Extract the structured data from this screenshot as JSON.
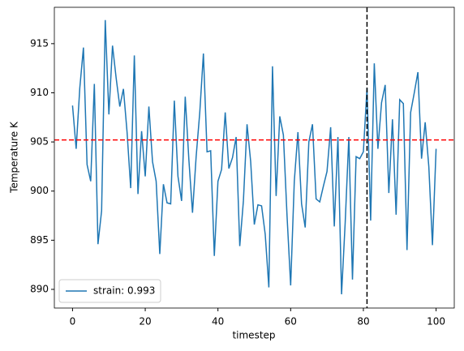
{
  "chart_data": {
    "type": "line",
    "x_label": "timestep",
    "y_label": "Temperature K",
    "x": [
      0,
      1,
      2,
      3,
      4,
      5,
      6,
      7,
      8,
      9,
      10,
      11,
      12,
      13,
      14,
      15,
      16,
      17,
      18,
      19,
      20,
      21,
      22,
      23,
      24,
      25,
      26,
      27,
      28,
      29,
      30,
      31,
      32,
      33,
      34,
      35,
      36,
      37,
      38,
      39,
      40,
      41,
      42,
      43,
      44,
      45,
      46,
      47,
      48,
      49,
      50,
      51,
      52,
      53,
      54,
      55,
      56,
      57,
      58,
      59,
      60,
      61,
      62,
      63,
      64,
      65,
      66,
      67,
      68,
      69,
      70,
      71,
      72,
      73,
      74,
      75,
      76,
      77,
      78,
      79,
      80,
      81,
      82,
      83,
      84,
      85,
      86,
      87,
      88,
      89,
      90,
      91,
      92,
      93,
      94,
      95,
      96,
      97,
      98,
      99,
      100
    ],
    "series": [
      {
        "name": "strain: 0.993",
        "color": "#1f77b4",
        "values": [
          908.7,
          904.3,
          910.5,
          914.6,
          902.7,
          901,
          910.9,
          894.6,
          898,
          917.4,
          907.8,
          914.8,
          911.5,
          908.6,
          910.4,
          906,
          900.3,
          913.8,
          899.7,
          906.1,
          901.5,
          908.6,
          903,
          901,
          893.6,
          900.7,
          898.8,
          898.7,
          909.2,
          901.5,
          899,
          909.6,
          903.2,
          897.8,
          903.5,
          908,
          914,
          904,
          904.1,
          893.4,
          901,
          902.2,
          908,
          902.3,
          903.4,
          905.5,
          894.4,
          899,
          906.8,
          903,
          896.6,
          898.6,
          898.5,
          895.6,
          890.2,
          912.7,
          899.5,
          907.6,
          905.7,
          897.5,
          890.4,
          901,
          906,
          898.7,
          896.3,
          905,
          906.8,
          899.2,
          898.9,
          900.5,
          902,
          906.5,
          896.4,
          905.5,
          889.5,
          896.8,
          905.5,
          891,
          903.5,
          903.3,
          904,
          910.5,
          897,
          913,
          904.3,
          909,
          910.8,
          899.8,
          907.3,
          897.6,
          909.3,
          908.9,
          894,
          908,
          910,
          912.1,
          903.3,
          907,
          902.5,
          894.5,
          904.3
        ]
      }
    ],
    "hlines": [
      {
        "value": 905.2,
        "color": "#ff0000"
      }
    ],
    "vlines": [
      {
        "value": 81,
        "color": "#000000"
      }
    ],
    "xlim": [
      -5,
      105
    ],
    "ylim": [
      888.1,
      918.7
    ],
    "xticks": [
      0,
      20,
      40,
      60,
      80,
      100
    ],
    "yticks": [
      890,
      895,
      900,
      905,
      910,
      915
    ],
    "legend": "lower left"
  }
}
